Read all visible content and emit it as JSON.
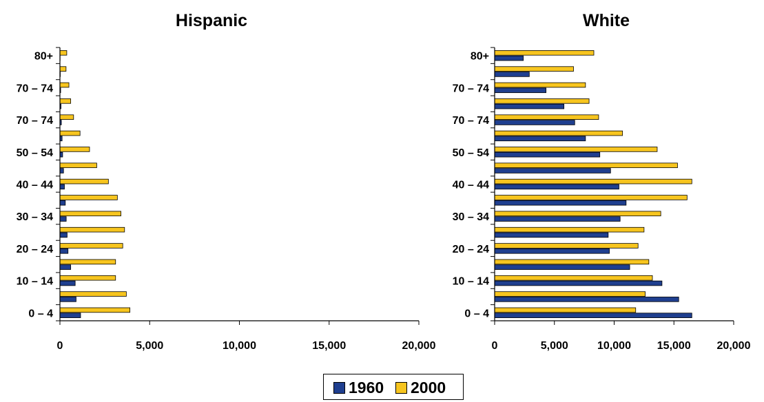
{
  "colors": {
    "series_1960": "#1f3f8f",
    "series_2000": "#f7c51f",
    "axis": "#000000"
  },
  "legend": {
    "items": [
      {
        "label": "1960"
      },
      {
        "label": "2000"
      }
    ]
  },
  "chart_data": [
    {
      "type": "bar",
      "orientation": "horizontal",
      "title": "Hispanic",
      "xlim": [
        0,
        20000
      ],
      "x_ticks": [
        "0",
        "5,000",
        "10,000",
        "15,000",
        "20,000"
      ],
      "y_tick_labels": [
        "0 – 4",
        "10 – 14",
        "20 – 24",
        "30 – 34",
        "40 – 44",
        "50 – 54",
        "70 – 74",
        "70 – 74",
        "80+"
      ],
      "categories_count": 17,
      "series": [
        {
          "name": "1960",
          "values": [
            1150,
            900,
            850,
            600,
            450,
            400,
            350,
            300,
            250,
            200,
            150,
            120,
            80,
            60,
            40,
            20,
            10
          ]
        },
        {
          "name": "2000",
          "values": [
            3900,
            3700,
            3100,
            3100,
            3500,
            3600,
            3400,
            3200,
            2700,
            2050,
            1650,
            1120,
            760,
            600,
            500,
            340,
            380
          ]
        }
      ],
      "grid": false,
      "legend_position": "bottom-center"
    },
    {
      "type": "bar",
      "orientation": "horizontal",
      "title": "White",
      "xlim": [
        0,
        20000
      ],
      "x_ticks": [
        "0",
        "5,000",
        "10,000",
        "15,000",
        "20,000"
      ],
      "y_tick_labels": [
        "0 – 4",
        "10 – 14",
        "20 – 24",
        "30 – 34",
        "40 – 44",
        "50 – 54",
        "70 – 74",
        "70 – 74",
        "80+"
      ],
      "categories_count": 17,
      "series": [
        {
          "name": "1960",
          "values": [
            16500,
            15400,
            14000,
            11300,
            9600,
            9500,
            10500,
            11000,
            10400,
            9700,
            8800,
            7600,
            6700,
            5800,
            4300,
            2900,
            2400
          ]
        },
        {
          "name": "2000",
          "values": [
            11800,
            12600,
            13200,
            12900,
            12000,
            12500,
            13900,
            16100,
            16500,
            15300,
            13600,
            10700,
            8700,
            7900,
            7600,
            6600,
            8300
          ]
        }
      ],
      "grid": false,
      "legend_position": "bottom-center"
    }
  ]
}
